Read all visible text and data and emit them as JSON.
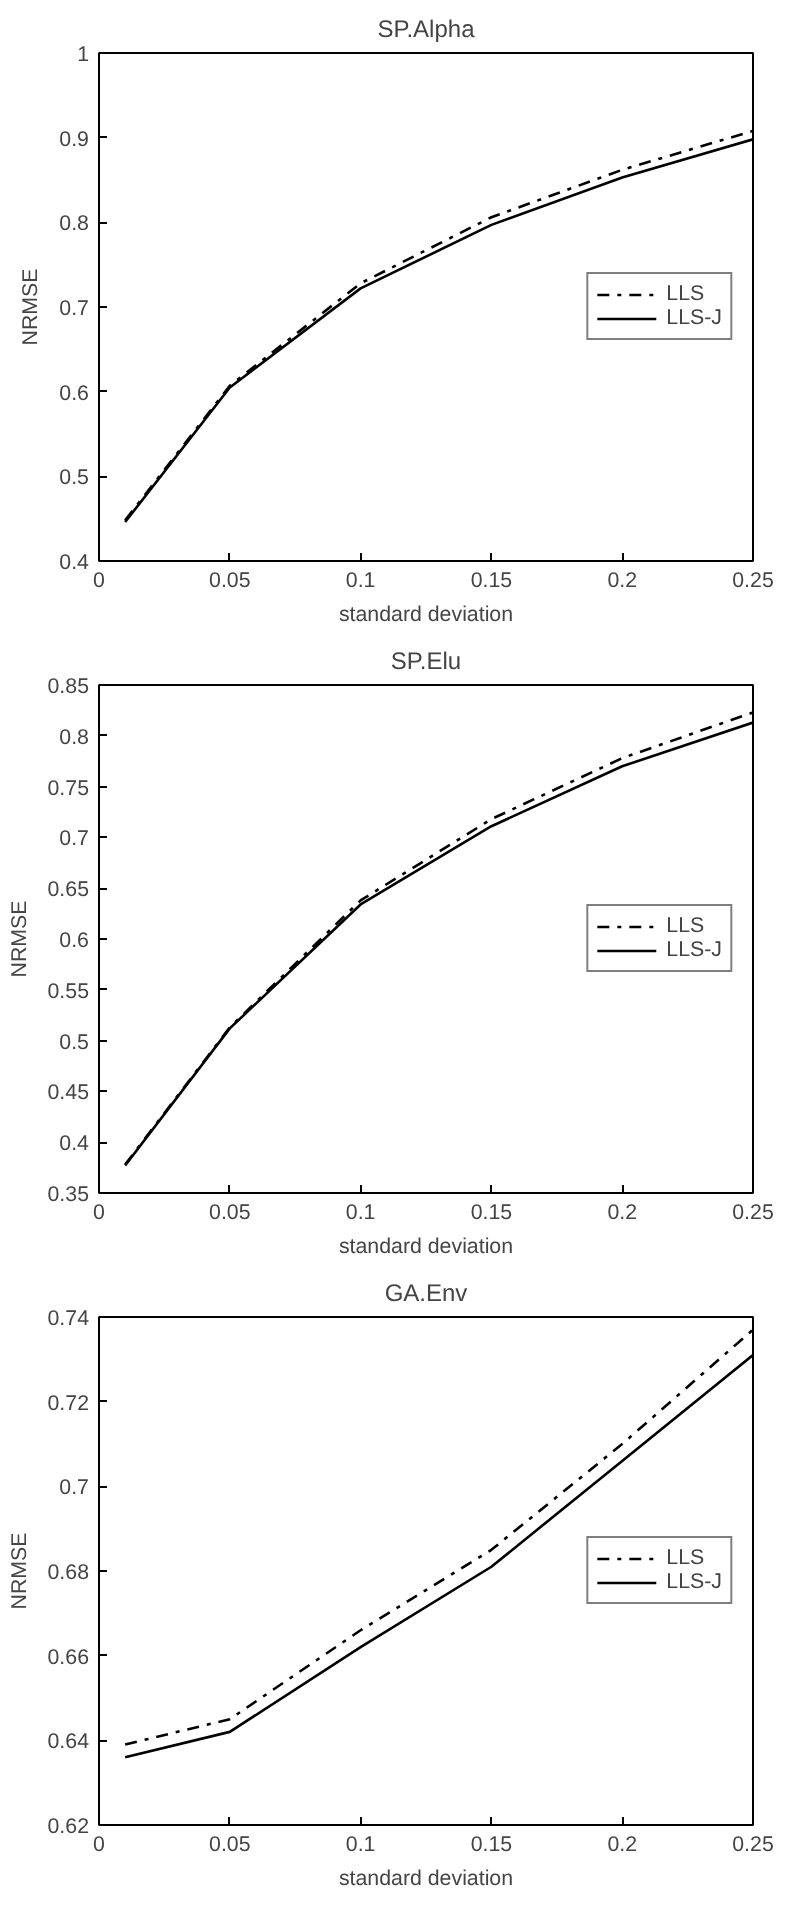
{
  "chart_data": [
    {
      "type": "line",
      "title": "SP.Alpha",
      "xlabel": "standard deviation",
      "ylabel": "NRMSE",
      "x": [
        0.01,
        0.05,
        0.1,
        0.15,
        0.2,
        0.25
      ],
      "xlim": [
        0,
        0.25
      ],
      "xticks": [
        0,
        0.05,
        0.1,
        0.15,
        0.2,
        0.25
      ],
      "ylim": [
        0.4,
        1
      ],
      "yticks": [
        0.4,
        0.5,
        0.6,
        0.7,
        0.8,
        0.9,
        1
      ],
      "grid": false,
      "legend": "right",
      "series": [
        {
          "name": "LLS",
          "color": "#000000",
          "line_style": "dashdot",
          "values": [
            0.448,
            0.607,
            0.728,
            0.806,
            0.862,
            0.908
          ]
        },
        {
          "name": "LLS-J",
          "color": "#000000",
          "line_style": "solid",
          "values": [
            0.446,
            0.605,
            0.722,
            0.797,
            0.853,
            0.898
          ]
        }
      ]
    },
    {
      "type": "line",
      "title": "SP.Elu",
      "xlabel": "standard deviation",
      "ylabel": "NRMSE",
      "x": [
        0.01,
        0.05,
        0.1,
        0.15,
        0.2,
        0.25
      ],
      "xlim": [
        0,
        0.25
      ],
      "xticks": [
        0,
        0.05,
        0.1,
        0.15,
        0.2,
        0.25
      ],
      "ylim": [
        0.35,
        0.85
      ],
      "yticks": [
        0.35,
        0.4,
        0.45,
        0.5,
        0.55,
        0.6,
        0.65,
        0.7,
        0.75,
        0.8,
        0.85
      ],
      "grid": false,
      "legend": "right",
      "series": [
        {
          "name": "LLS",
          "color": "#000000",
          "line_style": "dashdot",
          "values": [
            0.378,
            0.513,
            0.638,
            0.718,
            0.778,
            0.823
          ]
        },
        {
          "name": "LLS-J",
          "color": "#000000",
          "line_style": "solid",
          "values": [
            0.377,
            0.512,
            0.634,
            0.711,
            0.77,
            0.813
          ]
        }
      ]
    },
    {
      "type": "line",
      "title": "GA.Env",
      "xlabel": "standard deviation",
      "ylabel": "NRMSE",
      "x": [
        0.01,
        0.05,
        0.1,
        0.15,
        0.2,
        0.25
      ],
      "xlim": [
        0,
        0.25
      ],
      "xticks": [
        0,
        0.05,
        0.1,
        0.15,
        0.2,
        0.25
      ],
      "ylim": [
        0.62,
        0.74
      ],
      "yticks": [
        0.62,
        0.64,
        0.66,
        0.68,
        0.7,
        0.72,
        0.74
      ],
      "grid": false,
      "legend": "right",
      "series": [
        {
          "name": "LLS",
          "color": "#000000",
          "line_style": "dashdot",
          "values": [
            0.639,
            0.645,
            0.666,
            0.685,
            0.71,
            0.737
          ]
        },
        {
          "name": "LLS-J",
          "color": "#000000",
          "line_style": "solid",
          "values": [
            0.636,
            0.642,
            0.662,
            0.681,
            0.706,
            0.731
          ]
        }
      ]
    }
  ]
}
